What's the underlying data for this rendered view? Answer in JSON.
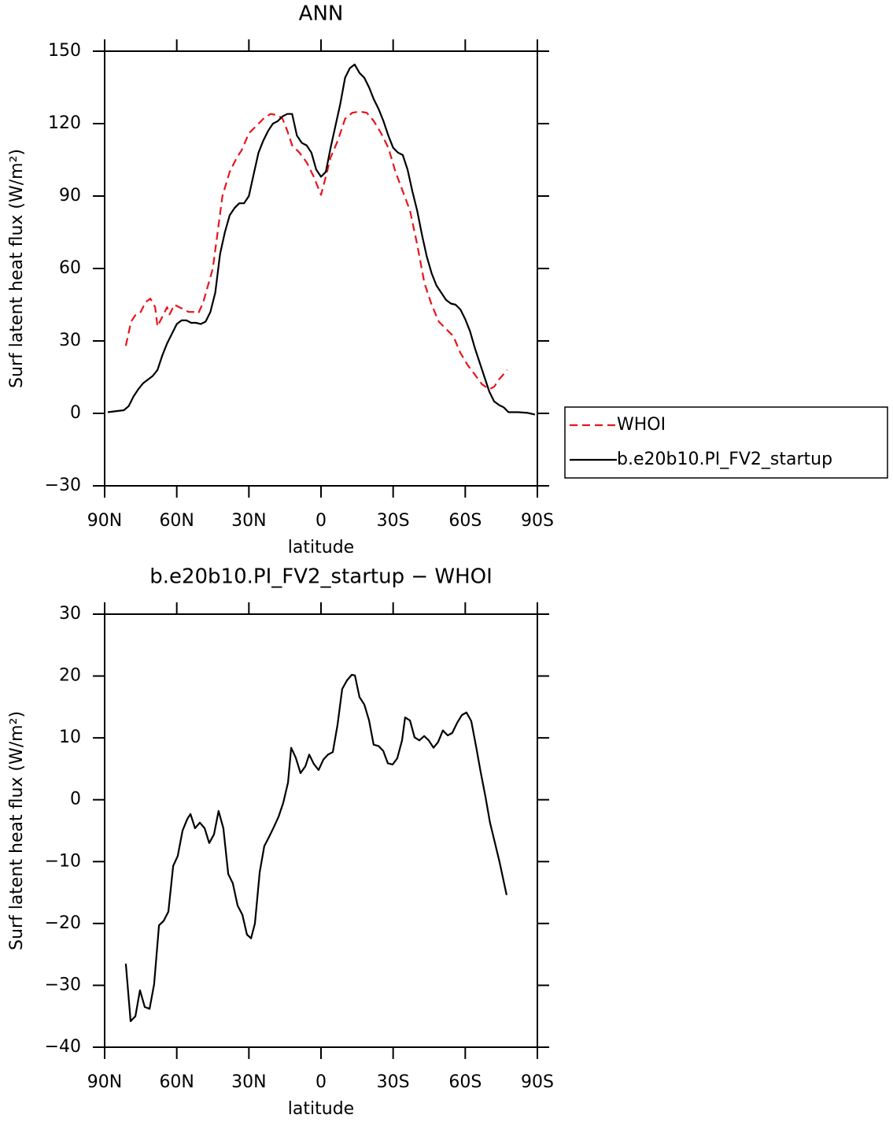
{
  "chart_data": [
    {
      "type": "line",
      "title": "ANN",
      "x_label": "latitude",
      "y_label": "Surf latent heat flux (W/m²)",
      "xlim": [
        90,
        -90
      ],
      "ylim": [
        -30,
        150
      ],
      "xticks": [
        {
          "value": 90,
          "label": "90N"
        },
        {
          "value": 60,
          "label": "60N"
        },
        {
          "value": 30,
          "label": "30N"
        },
        0,
        {
          "value": -30,
          "label": "30S"
        },
        {
          "value": -60,
          "label": "60S"
        },
        {
          "value": -90,
          "label": "90S"
        }
      ],
      "yticks": [
        {
          "value": -30,
          "label": "−30"
        },
        0,
        30,
        60,
        90,
        120,
        150
      ],
      "legend": "right",
      "series": [
        {
          "name": "WHOI",
          "color": "#e8141c",
          "dashed": true,
          "x": [
            81.2,
            79,
            77,
            75,
            73,
            71,
            69,
            68,
            66,
            64,
            63,
            61,
            58,
            55,
            53,
            51,
            49,
            47,
            45,
            43,
            41,
            38,
            35,
            33,
            30,
            27,
            24,
            21,
            18,
            16,
            14,
            12,
            9,
            6,
            3,
            1,
            0,
            -2,
            -4,
            -7,
            -10,
            -13,
            -16,
            -19,
            -22,
            -25,
            -28,
            -31,
            -34,
            -37,
            -40,
            -43,
            -46,
            -49,
            -52,
            -55,
            -58,
            -61,
            -64,
            -67,
            -70,
            -72,
            -74,
            -77.5
          ],
          "values": [
            28,
            38,
            41,
            42,
            46,
            47.5,
            44,
            36,
            40,
            44,
            41,
            45,
            43.5,
            42,
            42,
            41.5,
            46,
            53,
            60,
            75,
            90,
            100,
            106,
            109,
            116,
            119,
            122,
            124,
            123.5,
            122,
            117,
            111,
            108,
            104,
            98,
            93,
            90.5,
            98,
            106,
            113,
            122,
            124.5,
            125,
            124.5,
            121,
            116,
            110,
            100,
            92,
            84,
            70,
            54,
            45,
            38,
            35,
            32,
            25,
            20,
            16,
            12,
            10,
            11,
            14,
            18
          ]
        },
        {
          "name": "b.e20b10.PI_FV2_startup",
          "color": "#000000",
          "dashed": false,
          "x": [
            88.7,
            82,
            80,
            78,
            76,
            74,
            72,
            70,
            68,
            66,
            64,
            62,
            60,
            58,
            56,
            54,
            52,
            50,
            48,
            46,
            44,
            42,
            40,
            38,
            36,
            34,
            32,
            30,
            28,
            26,
            24,
            22,
            20,
            18,
            16,
            14,
            12,
            10,
            8,
            6,
            4,
            2,
            0,
            -2,
            -4,
            -6,
            -8,
            -10,
            -12,
            -14,
            -16,
            -18,
            -20,
            -22,
            -24,
            -26,
            -28,
            -30,
            -32,
            -34,
            -36,
            -38,
            -40,
            -42,
            -44,
            -46,
            -48,
            -50,
            -52,
            -54,
            -56,
            -58,
            -60,
            -62,
            -64,
            -66,
            -68,
            -70,
            -72,
            -74,
            -76,
            -78,
            -82,
            -86,
            -89
          ],
          "values": [
            0.5,
            1.3,
            3,
            7,
            10,
            12.5,
            14,
            15.5,
            18,
            24,
            29,
            33,
            37,
            38.5,
            38.5,
            37.5,
            37.5,
            37,
            38,
            42,
            50,
            66,
            75,
            82,
            85,
            87,
            87,
            90,
            99,
            108,
            113,
            117,
            120,
            121,
            123,
            124,
            124,
            115,
            112,
            111,
            108,
            101,
            98,
            100,
            110,
            119,
            128,
            139,
            143,
            144.5,
            141,
            139,
            135,
            130,
            126,
            121,
            115,
            110,
            108,
            107,
            101,
            92,
            84,
            74,
            65,
            58,
            53,
            50,
            47,
            45.5,
            45,
            43,
            39,
            34,
            27,
            21,
            15,
            9,
            5,
            3.5,
            2.5,
            0.5,
            0.5,
            0.2,
            -0.5
          ]
        }
      ]
    },
    {
      "type": "line",
      "title": "b.e20b10.PI_FV2_startup − WHOI",
      "x_label": "latitude",
      "y_label": "Surf latent heat flux (W/m²)",
      "xlim": [
        90,
        -90
      ],
      "ylim": [
        -40,
        30
      ],
      "xticks": [
        {
          "value": 90,
          "label": "90N"
        },
        {
          "value": 60,
          "label": "60N"
        },
        {
          "value": 30,
          "label": "30N"
        },
        0,
        {
          "value": -30,
          "label": "30S"
        },
        {
          "value": -60,
          "label": "60S"
        },
        {
          "value": -90,
          "label": "90S"
        }
      ],
      "yticks": [
        {
          "value": -40,
          "label": "−40"
        },
        {
          "value": -30,
          "label": "−30"
        },
        {
          "value": -20,
          "label": "−20"
        },
        {
          "value": -10,
          "label": "−10"
        },
        0,
        10,
        20,
        30
      ],
      "color": "#000000",
      "x": [
        81.2,
        79.2,
        77.2,
        75.3,
        73.3,
        71.3,
        69.4,
        67.4,
        65.5,
        63.5,
        61.5,
        59.6,
        57.6,
        55.6,
        54.3,
        52.4,
        50.4,
        48.4,
        46.5,
        44.5,
        42.6,
        40.6,
        38.6,
        36.7,
        34.7,
        32.7,
        30.8,
        29.1,
        27.5,
        25.5,
        23.6,
        21.6,
        19.6,
        17.6,
        15.7,
        13.7,
        12.4,
        10.5,
        8.5,
        6.5,
        4.9,
        3,
        1,
        -1,
        -2.9,
        -4.9,
        -6.9,
        -8.8,
        -10.8,
        -12.8,
        -14.1,
        -16,
        -18,
        -20,
        -21.9,
        -23.9,
        -25.9,
        -27.8,
        -29.8,
        -31.7,
        -33.7,
        -35,
        -37,
        -38.9,
        -40.9,
        -42.9,
        -44.8,
        -46.8,
        -48.7,
        -50.7,
        -52.7,
        -54.6,
        -56.6,
        -58.6,
        -60.5,
        -62.5,
        -64.5,
        -66.4,
        -68.4,
        -70.3,
        -72.3,
        -74.3,
        -77.2
      ],
      "values": [
        -26.5,
        -35.8,
        -35,
        -30.8,
        -33.5,
        -33.8,
        -29.8,
        -20.3,
        -19.6,
        -18.1,
        -10.7,
        -9.1,
        -5,
        -3.1,
        -2.3,
        -4.6,
        -3.7,
        -4.6,
        -7,
        -5.6,
        -1.8,
        -4.6,
        -12,
        -13.5,
        -17.1,
        -18.6,
        -21.8,
        -22.4,
        -20,
        -11.7,
        -7.5,
        -6,
        -4.4,
        -2.7,
        -0.5,
        2.8,
        8.4,
        6.8,
        4.3,
        5.4,
        7.3,
        5.8,
        4.8,
        6.5,
        7.3,
        7.7,
        12.2,
        17.9,
        19.3,
        20.2,
        20.1,
        16.6,
        15.4,
        12.8,
        8.9,
        8.7,
        7.9,
        5.9,
        5.7,
        6.7,
        9.6,
        13.3,
        12.8,
        10.1,
        9.6,
        10.3,
        9.6,
        8.4,
        9.3,
        11.2,
        10.4,
        10.8,
        12.4,
        13.7,
        14.1,
        12.7,
        8.6,
        4.5,
        0.5,
        -3.7,
        -6.9,
        -10.1,
        -15.4
      ]
    }
  ]
}
